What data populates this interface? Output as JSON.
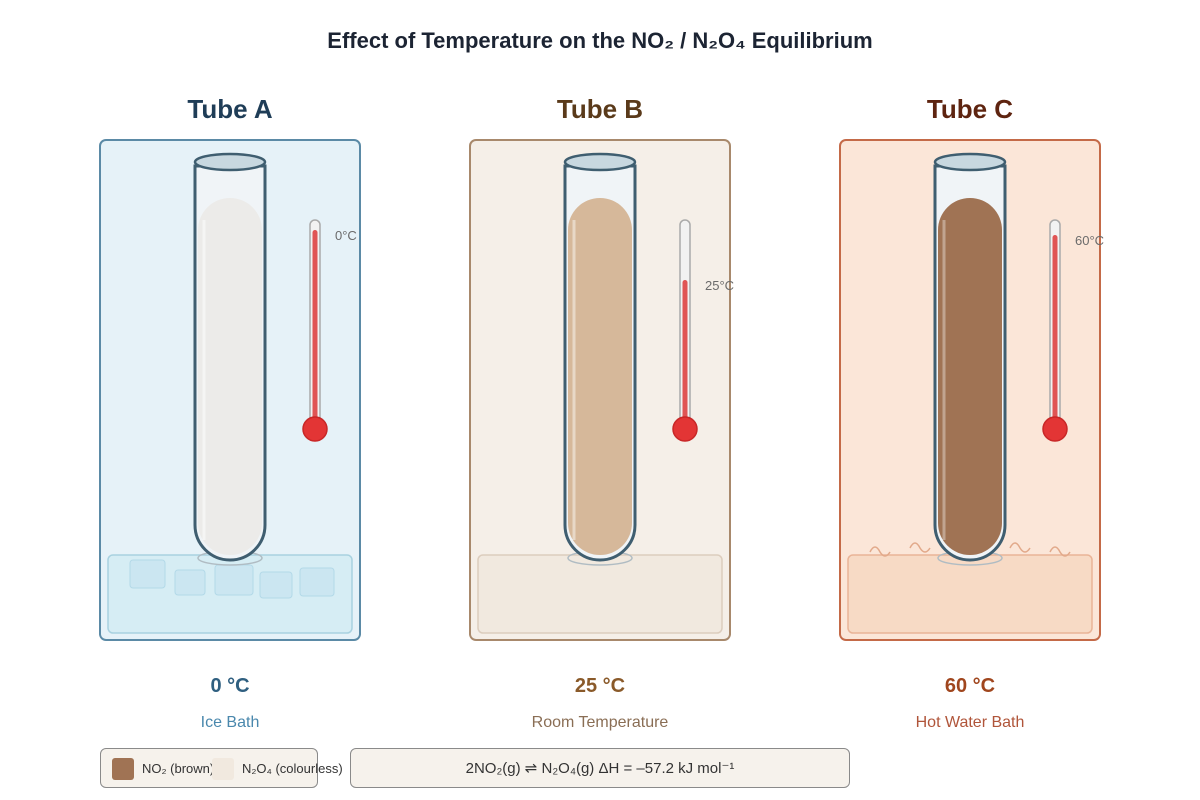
{
  "title": "Effect of Temperature on the NO₂ / N₂O₄ Equilibrium",
  "tubes": [
    {
      "name": "Tube A",
      "temperature_label": "0 °C",
      "bath_label": "Ice Bath",
      "thermometer_reading": "0°C",
      "temperature_c": 0,
      "colors": {
        "title": "#1f3d57",
        "temp": "#2f5f80",
        "bath": "#4a88ad",
        "border": "#5b8aa6",
        "panel": "#e6f2f8",
        "fill": "#ecebe9"
      }
    },
    {
      "name": "Tube B",
      "temperature_label": "25 °C",
      "bath_label": "Room Temperature",
      "thermometer_reading": "25°C",
      "temperature_c": 25,
      "colors": {
        "title": "#5a3a1a",
        "temp": "#8a5a2a",
        "bath": "#8a6e55",
        "border": "#a8896c",
        "panel": "#f5efe8",
        "fill": "#d6b89a"
      }
    },
    {
      "name": "Tube C",
      "temperature_label": "60 °C",
      "bath_label": "Hot Water Bath",
      "thermometer_reading": "60°C",
      "temperature_c": 60,
      "colors": {
        "title": "#5e2410",
        "temp": "#a0461e",
        "bath": "#b0553a",
        "border": "#c46a48",
        "panel": "#fbe6d8",
        "fill": "#a07354"
      }
    }
  ],
  "legend": {
    "no2_label": "NO₂ (brown)",
    "n2o4_label": "N₂O₄ (colourless)",
    "no2_color": "#a07354",
    "n2o4_color": "#f1e9df"
  },
  "equation": "2NO₂(g) ⇌ N₂O₄(g) ΔH = –57.2 kJ mol⁻¹"
}
